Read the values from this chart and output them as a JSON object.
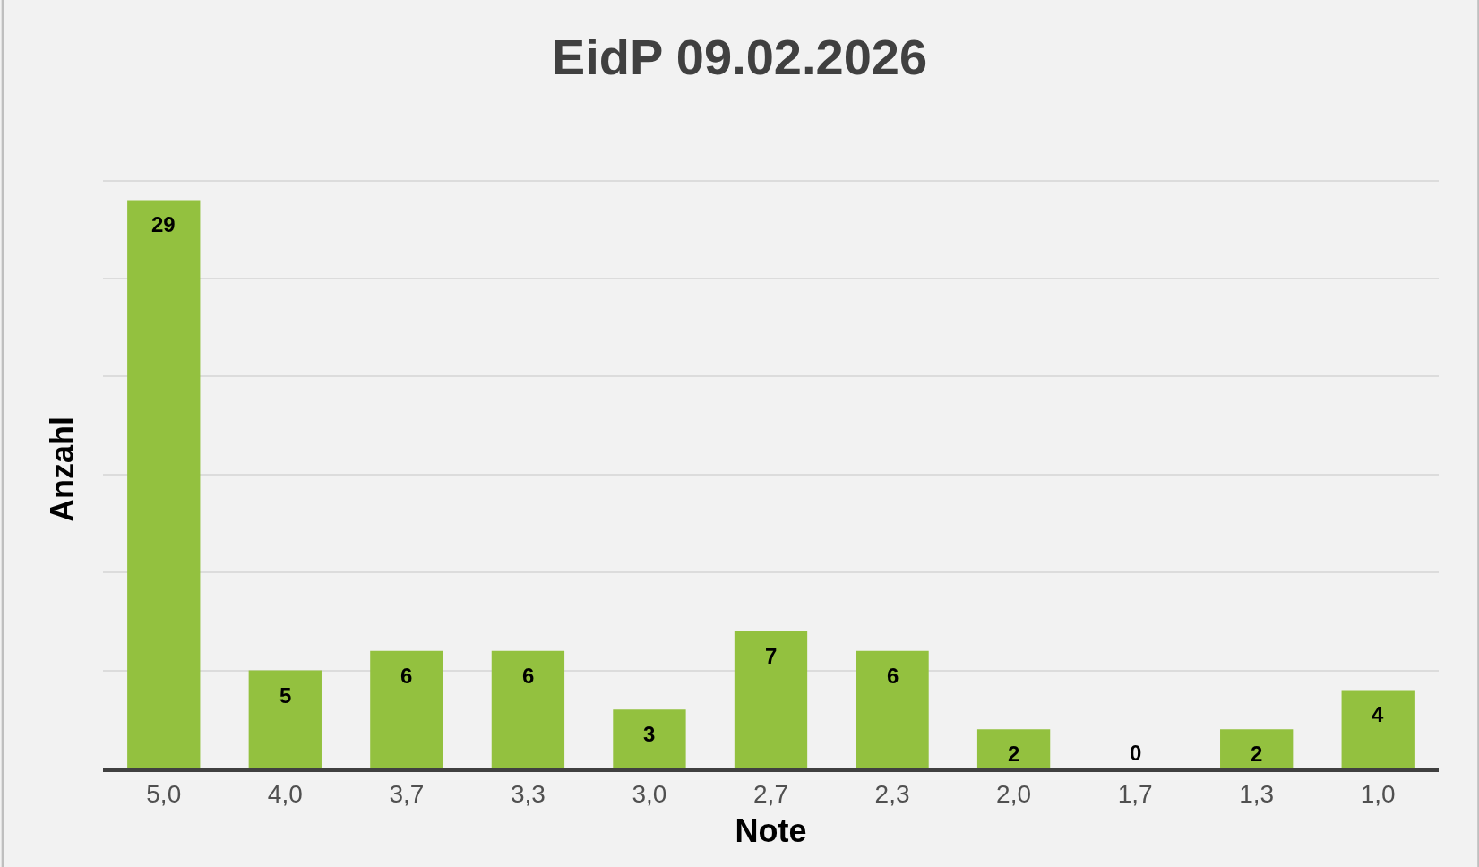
{
  "chart_data": {
    "type": "bar",
    "title": "EidP 09.02.2026",
    "xlabel": "Note",
    "ylabel": "Anzahl",
    "categories": [
      "5,0",
      "4,0",
      "3,7",
      "3,3",
      "3,0",
      "2,7",
      "2,3",
      "2,0",
      "1,7",
      "1,3",
      "1,0"
    ],
    "values": [
      29,
      5,
      6,
      6,
      3,
      7,
      6,
      2,
      0,
      2,
      4
    ],
    "color": "#93c13f",
    "tick_labels": "x",
    "grid": "y",
    "data_labels": true,
    "legend": false
  }
}
